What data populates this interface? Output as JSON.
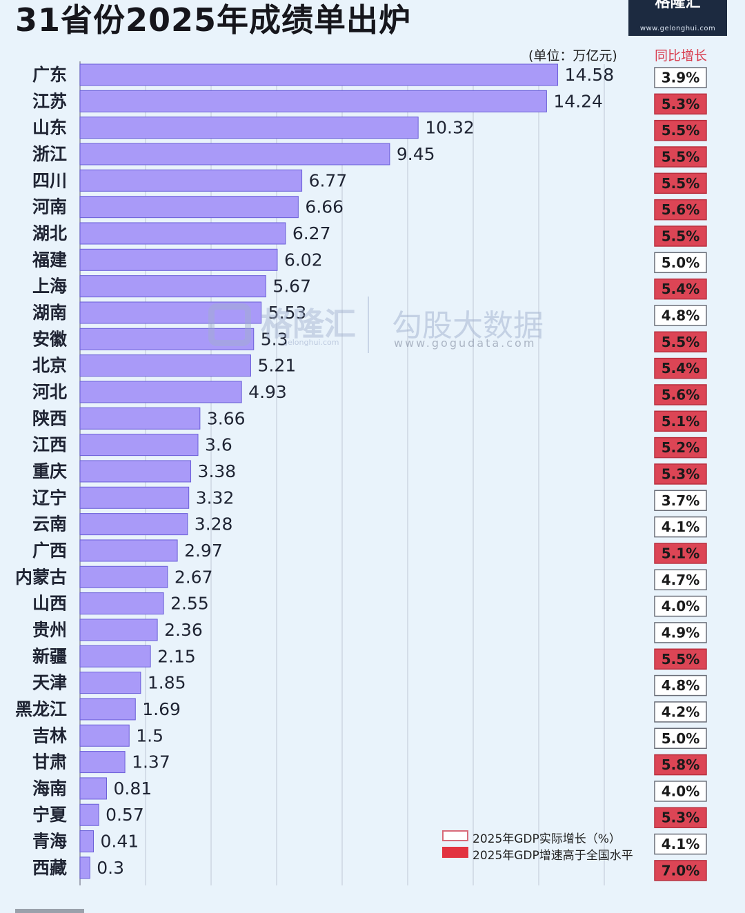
{
  "title": "31省份2025年成绩单出炉",
  "logo": {
    "brand": "格隆汇",
    "url": "www.gelonghui.com"
  },
  "unit_label": "(单位：万亿元)",
  "growth_header": "同比增长",
  "watermarks": {
    "gelonghui": "格隆汇",
    "gelonghui_url": "gelonghui.com",
    "gogu": "勾股大数据",
    "gogu_url": "www.gogudata.com"
  },
  "legend": {
    "normal": "2025年GDP实际增长（%）",
    "above": "2025年GDP增速高于全国水平"
  },
  "colors": {
    "bar": "#a99af8",
    "bar_border": "#6a5ed8",
    "grid": "#bfc7d4",
    "highlight": "#dc4555",
    "normal_box": "#ffffff",
    "value_text": "#1f2433",
    "label_text": "#1f2433"
  },
  "chart_data": {
    "type": "bar",
    "orientation": "horizontal",
    "title": "31省份2025年成绩单出炉",
    "unit": "万亿元",
    "xlim": [
      0,
      16
    ],
    "categories": [
      "广东",
      "江苏",
      "山东",
      "浙江",
      "四川",
      "河南",
      "湖北",
      "福建",
      "上海",
      "湖南",
      "安徽",
      "北京",
      "河北",
      "陕西",
      "江西",
      "重庆",
      "辽宁",
      "云南",
      "广西",
      "内蒙古",
      "山西",
      "贵州",
      "新疆",
      "天津",
      "黑龙江",
      "吉林",
      "甘肃",
      "海南",
      "宁夏",
      "青海",
      "西藏"
    ],
    "values": [
      14.58,
      14.24,
      10.32,
      9.45,
      6.77,
      6.66,
      6.27,
      6.02,
      5.67,
      5.53,
      5.3,
      5.21,
      4.93,
      3.66,
      3.6,
      3.38,
      3.32,
      3.28,
      2.97,
      2.67,
      2.55,
      2.36,
      2.15,
      1.85,
      1.69,
      1.5,
      1.37,
      0.81,
      0.57,
      0.41,
      0.3
    ],
    "growth_labels": [
      "3.9%",
      "5.3%",
      "5.5%",
      "5.5%",
      "5.5%",
      "5.6%",
      "5.5%",
      "5.0%",
      "5.4%",
      "4.8%",
      "5.5%",
      "5.4%",
      "5.6%",
      "5.1%",
      "5.2%",
      "5.3%",
      "3.7%",
      "4.1%",
      "5.1%",
      "4.7%",
      "4.0%",
      "4.9%",
      "5.5%",
      "4.8%",
      "4.2%",
      "5.0%",
      "5.8%",
      "4.0%",
      "5.3%",
      "4.1%",
      "7.0%"
    ],
    "growth_above_national": [
      false,
      true,
      true,
      true,
      true,
      true,
      true,
      false,
      true,
      false,
      true,
      true,
      true,
      true,
      true,
      true,
      false,
      false,
      true,
      false,
      false,
      false,
      true,
      false,
      false,
      false,
      true,
      false,
      true,
      false,
      true
    ]
  }
}
